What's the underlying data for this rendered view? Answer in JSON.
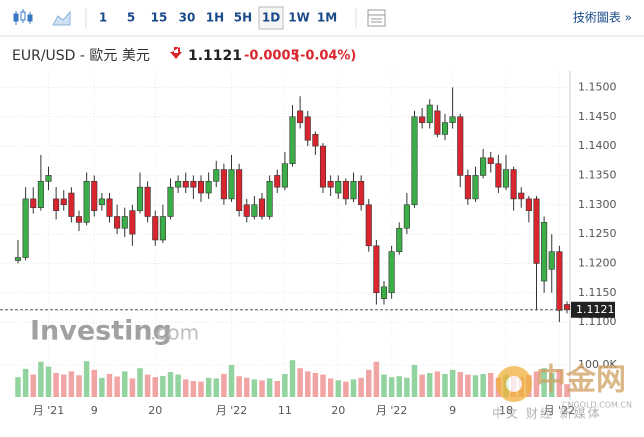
{
  "toolbar": {
    "intervals": [
      "1",
      "5",
      "15",
      "30",
      "1H",
      "5H",
      "1D",
      "1W",
      "1M"
    ],
    "active": "1D",
    "technical": "技術圖表 »"
  },
  "watermark": {
    "brand": "Investing",
    "domain": ".com",
    "site": "中金网",
    "site_url": "CNGOLD.COM.CN",
    "site_slogan": "中文 财经 新媒体"
  },
  "chart_data": {
    "type": "candlestick",
    "title": "EUR/USD - 歐元 美元",
    "last_price": {
      "value": 1.1121,
      "label": "1.1121"
    },
    "change": {
      "value": -0.0005,
      "label": "-0.0005"
    },
    "change_pct": {
      "value": -0.04,
      "label": "(-0.04%)"
    },
    "up_color": "#3cae48",
    "down_color": "#d9262e",
    "up_volume_color": "#93d3a0",
    "down_volume_color": "#f1a4a4",
    "ylim": [
      1.1078,
      1.1528
    ],
    "yticks": [
      {
        "value": 1.15,
        "label": "1.1500"
      },
      {
        "value": 1.145,
        "label": "1.1450"
      },
      {
        "value": 1.14,
        "label": "1.1400"
      },
      {
        "value": 1.135,
        "label": "1.1350"
      },
      {
        "value": 1.13,
        "label": "1.1300"
      },
      {
        "value": 1.125,
        "label": "1.1250"
      },
      {
        "value": 1.12,
        "label": "1.1200"
      },
      {
        "value": 1.115,
        "label": "1.1150"
      },
      {
        "value": 1.11,
        "label": "1.1100"
      }
    ],
    "y2lim": [
      0,
      150000
    ],
    "y2ticks": [
      {
        "value": 100000,
        "label": "100.0K"
      }
    ],
    "xticks": [
      {
        "value": 4,
        "label": "月 '21"
      },
      {
        "value": 10,
        "label": "9"
      },
      {
        "value": 18,
        "label": "20"
      },
      {
        "value": 28,
        "label": "月 '22"
      },
      {
        "value": 35,
        "label": "11"
      },
      {
        "value": 42,
        "label": "20"
      },
      {
        "value": 49,
        "label": "月 '22"
      },
      {
        "value": 57,
        "label": "9"
      },
      {
        "value": 64,
        "label": "18"
      },
      {
        "value": 71,
        "label": "月 '22"
      }
    ],
    "open": [
      1.1205,
      1.121,
      1.131,
      1.1295,
      1.134,
      1.131,
      1.131,
      1.132,
      1.128,
      1.127,
      1.134,
      1.13,
      1.131,
      1.128,
      1.126,
      1.129,
      1.129,
      1.133,
      1.128,
      1.124,
      1.128,
      1.133,
      1.134,
      1.134,
      1.134,
      1.132,
      1.134,
      1.136,
      1.131,
      1.136,
      1.13,
      1.128,
      1.131,
      1.128,
      1.135,
      1.133,
      1.137,
      1.146,
      1.145,
      1.142,
      1.14,
      1.134,
      1.132,
      1.134,
      1.131,
      1.134,
      1.13,
      1.123,
      1.114,
      1.115,
      1.122,
      1.126,
      1.13,
      1.145,
      1.144,
      1.146,
      1.142,
      1.144,
      1.145,
      1.135,
      1.131,
      1.135,
      1.138,
      1.137,
      1.133,
      1.136,
      1.132,
      1.131,
      1.131,
      1.117,
      1.119,
      1.122,
      1.113
    ],
    "close": [
      1.121,
      1.131,
      1.1295,
      1.134,
      1.135,
      1.129,
      1.13,
      1.128,
      1.127,
      1.134,
      1.129,
      1.131,
      1.128,
      1.126,
      1.128,
      1.125,
      1.133,
      1.128,
      1.124,
      1.128,
      1.133,
      1.134,
      1.133,
      1.133,
      1.132,
      1.134,
      1.136,
      1.131,
      1.136,
      1.129,
      1.128,
      1.13,
      1.128,
      1.134,
      1.133,
      1.137,
      1.145,
      1.144,
      1.141,
      1.14,
      1.133,
      1.133,
      1.134,
      1.131,
      1.134,
      1.13,
      1.123,
      1.115,
      1.116,
      1.122,
      1.126,
      1.13,
      1.145,
      1.144,
      1.147,
      1.142,
      1.144,
      1.145,
      1.135,
      1.131,
      1.135,
      1.138,
      1.137,
      1.133,
      1.136,
      1.131,
      1.131,
      1.129,
      1.12,
      1.127,
      1.122,
      1.112,
      1.1121
    ],
    "high": [
      1.124,
      1.133,
      1.133,
      1.1385,
      1.1365,
      1.133,
      1.1325,
      1.133,
      1.129,
      1.1355,
      1.135,
      1.132,
      1.132,
      1.13,
      1.1295,
      1.13,
      1.1355,
      1.134,
      1.129,
      1.13,
      1.1345,
      1.135,
      1.1355,
      1.135,
      1.135,
      1.1355,
      1.1375,
      1.137,
      1.1385,
      1.137,
      1.131,
      1.1315,
      1.132,
      1.135,
      1.136,
      1.139,
      1.147,
      1.1485,
      1.146,
      1.1425,
      1.1405,
      1.135,
      1.135,
      1.1345,
      1.1355,
      1.135,
      1.131,
      1.124,
      1.117,
      1.123,
      1.127,
      1.132,
      1.146,
      1.1465,
      1.148,
      1.147,
      1.1455,
      1.15,
      1.1455,
      1.136,
      1.1365,
      1.1395,
      1.139,
      1.1385,
      1.1385,
      1.1365,
      1.133,
      1.1315,
      1.1315,
      1.128,
      1.125,
      1.123,
      1.1135
    ],
    "low": [
      1.12,
      1.1205,
      1.1285,
      1.129,
      1.1325,
      1.1275,
      1.129,
      1.127,
      1.1255,
      1.1265,
      1.128,
      1.129,
      1.127,
      1.125,
      1.1245,
      1.123,
      1.1285,
      1.127,
      1.123,
      1.1235,
      1.1275,
      1.132,
      1.132,
      1.131,
      1.1305,
      1.131,
      1.133,
      1.13,
      1.1305,
      1.128,
      1.127,
      1.1275,
      1.1275,
      1.1275,
      1.132,
      1.1325,
      1.1365,
      1.143,
      1.14,
      1.1385,
      1.132,
      1.1315,
      1.131,
      1.13,
      1.1305,
      1.129,
      1.122,
      1.113,
      1.113,
      1.114,
      1.1215,
      1.125,
      1.1295,
      1.143,
      1.143,
      1.1415,
      1.141,
      1.143,
      1.133,
      1.13,
      1.1305,
      1.1345,
      1.1355,
      1.132,
      1.1325,
      1.129,
      1.1295,
      1.127,
      1.112,
      1.115,
      1.115,
      1.11,
      1.1115
    ],
    "volume": [
      62000,
      88000,
      70000,
      110000,
      95000,
      75000,
      70000,
      80000,
      68000,
      112000,
      85000,
      60000,
      72000,
      64000,
      80000,
      58000,
      90000,
      70000,
      62000,
      66000,
      78000,
      70000,
      55000,
      50000,
      48000,
      60000,
      58000,
      72000,
      100000,
      65000,
      60000,
      55000,
      52000,
      58000,
      50000,
      72000,
      115000,
      90000,
      80000,
      75000,
      70000,
      58000,
      52000,
      48000,
      55000,
      60000,
      85000,
      110000,
      70000,
      62000,
      65000,
      60000,
      100000,
      70000,
      75000,
      80000,
      72000,
      85000,
      78000,
      70000,
      68000,
      72000,
      75000,
      60000,
      70000,
      65000,
      62000,
      68000,
      80000,
      90000,
      75000,
      85000,
      40000
    ]
  }
}
